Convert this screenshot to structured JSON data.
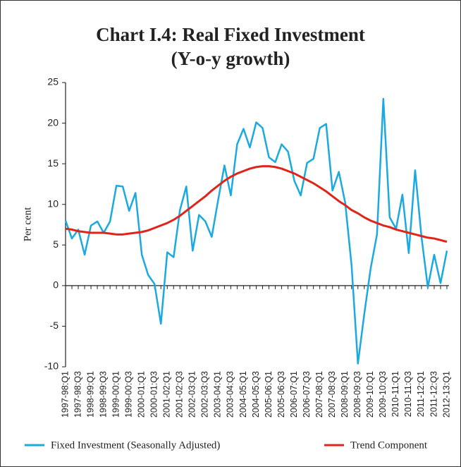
{
  "chart_data": {
    "type": "line",
    "title": "Chart I.4: Real Fixed Investment",
    "subtitle": "(Y-o-y growth)",
    "y_label": "Per cent",
    "categories": [
      "1997-98:Q1",
      null,
      "1997-98:Q3",
      null,
      "1998-99:Q1",
      null,
      "1998-99:Q3",
      null,
      "1999-00:Q1",
      null,
      "1999-00:Q3",
      null,
      "2000-01:Q1",
      null,
      "2000-01:Q3",
      null,
      "2001-02:Q1",
      null,
      "2001-02:Q3",
      null,
      "2002-03:Q1",
      null,
      "2002-03:Q3",
      null,
      "2003-04:Q1",
      null,
      "2003-04:Q3",
      null,
      "2004-05:Q1",
      null,
      "2004-05:Q3",
      null,
      "2005-06:Q1",
      null,
      "2005-06:Q3",
      null,
      "2006-07:Q1",
      null,
      "2006-07:Q3",
      null,
      "2007-08:Q1",
      null,
      "2007-08:Q3",
      null,
      "2008-09:Q1",
      null,
      "2008-09:Q3",
      null,
      "2009-10:Q1",
      null,
      "2009-10:Q3",
      null,
      "2010-11:Q1",
      null,
      "2010-11:Q3",
      null,
      "2011-12:Q1",
      null,
      "2011-12:Q3",
      null,
      "2012-13:Q1"
    ],
    "series": [
      {
        "name": "Fixed Investment (Seasonally Adjusted)",
        "color": "#1ba9e1",
        "values": [
          8.0,
          5.8,
          6.9,
          3.8,
          7.4,
          7.9,
          6.5,
          7.9,
          12.3,
          12.2,
          9.2,
          11.4,
          3.8,
          1.3,
          0.2,
          -4.7,
          4.1,
          3.5,
          9.3,
          12.2,
          4.3,
          8.7,
          7.9,
          6.0,
          10.5,
          14.8,
          11.1,
          17.4,
          19.3,
          17.0,
          20.1,
          19.4,
          15.8,
          15.2,
          17.4,
          16.5,
          12.9,
          11.1,
          15.1,
          15.6,
          19.4,
          19.9,
          11.7,
          14.0,
          10.2,
          2.5,
          -9.6,
          -3.5,
          2.1,
          6.3,
          23.0,
          8.4,
          7.0,
          11.2,
          4.0,
          14.2,
          6.0,
          -0.2,
          3.8,
          0.3,
          4.3
        ]
      },
      {
        "name": "Trend Component",
        "color": "#e2231a",
        "values": [
          7.0,
          6.9,
          6.7,
          6.6,
          6.5,
          6.5,
          6.5,
          6.4,
          6.3,
          6.3,
          6.4,
          6.5,
          6.6,
          6.8,
          7.1,
          7.4,
          7.7,
          8.1,
          8.6,
          9.2,
          9.8,
          10.4,
          11.0,
          11.7,
          12.3,
          12.9,
          13.4,
          13.8,
          14.1,
          14.4,
          14.6,
          14.7,
          14.7,
          14.6,
          14.4,
          14.1,
          13.8,
          13.4,
          13.0,
          12.6,
          12.1,
          11.6,
          11.0,
          10.4,
          9.9,
          9.3,
          8.9,
          8.4,
          8.0,
          7.7,
          7.4,
          7.2,
          6.9,
          6.7,
          6.5,
          6.3,
          6.1,
          5.9,
          5.8,
          5.6,
          5.4
        ]
      }
    ],
    "ylim": [
      -10,
      25
    ],
    "yticks": [
      -10,
      -5,
      0,
      5,
      10,
      15,
      20,
      25
    ],
    "grid": false
  }
}
